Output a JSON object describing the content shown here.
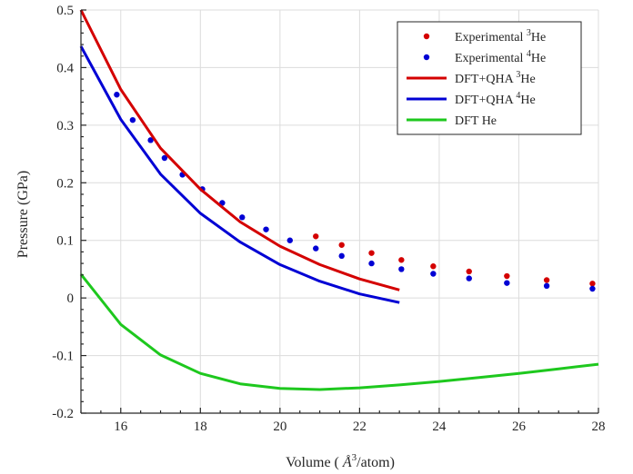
{
  "chart_data": {
    "type": "line",
    "xlabel_main": "Volume (",
    "xlabel_symbol": "Å",
    "xlabel_sup": "3",
    "xlabel_tail": "/atom)",
    "ylabel": "Pressure (GPa)",
    "xlim": [
      15,
      28
    ],
    "ylim": [
      -0.2,
      0.5
    ],
    "x_ticks": [
      16,
      18,
      20,
      22,
      24,
      26,
      28
    ],
    "x_tick_labels": [
      "16",
      "18",
      "20",
      "22",
      "24",
      "26",
      "28"
    ],
    "y_ticks": [
      -0.2,
      -0.1,
      0,
      0.1,
      0.2,
      0.3,
      0.4,
      0.5
    ],
    "y_tick_labels": [
      "-0.2",
      "-0.1",
      "0",
      "0.1",
      "0.2",
      "0.3",
      "0.4",
      "0.5"
    ],
    "grid": true,
    "legend_position": "top-right",
    "series": [
      {
        "name_prefix": "Experimental ",
        "name_sup": "3",
        "name_suffix": "He",
        "style": "markers",
        "color": "#d40000",
        "x": [
          20.9,
          21.55,
          22.3,
          23.05,
          23.85,
          24.75,
          25.7,
          26.7,
          27.85
        ],
        "y": [
          0.107,
          0.092,
          0.078,
          0.066,
          0.055,
          0.046,
          0.038,
          0.031,
          0.025
        ]
      },
      {
        "name_prefix": "Experimental ",
        "name_sup": "4",
        "name_suffix": "He",
        "style": "markers",
        "color": "#0000d4",
        "x": [
          15.9,
          16.3,
          16.75,
          17.1,
          17.55,
          18.05,
          18.55,
          19.05,
          19.65,
          20.25,
          20.9,
          21.55,
          22.3,
          23.05,
          23.85,
          24.75,
          25.7,
          26.7,
          27.85
        ],
        "y": [
          0.353,
          0.309,
          0.274,
          0.243,
          0.214,
          0.189,
          0.165,
          0.14,
          0.119,
          0.1,
          0.086,
          0.073,
          0.06,
          0.05,
          0.042,
          0.034,
          0.026,
          0.021,
          0.016
        ]
      },
      {
        "name_prefix": "DFT+QHA ",
        "name_sup": "3",
        "name_suffix": "He",
        "style": "line",
        "color": "#d40000",
        "x": [
          15,
          16,
          17,
          18,
          19,
          20,
          21,
          22,
          23
        ],
        "y": [
          0.5,
          0.362,
          0.26,
          0.189,
          0.132,
          0.09,
          0.058,
          0.033,
          0.014
        ]
      },
      {
        "name_prefix": "DFT+QHA ",
        "name_sup": "4",
        "name_suffix": "He",
        "style": "line",
        "color": "#0000d4",
        "x": [
          15,
          16,
          17,
          18,
          19,
          20,
          21,
          22,
          23
        ],
        "y": [
          0.437,
          0.31,
          0.215,
          0.147,
          0.097,
          0.058,
          0.029,
          0.007,
          -0.008
        ]
      },
      {
        "name_prefix": "DFT He",
        "name_sup": "",
        "name_suffix": "",
        "style": "line",
        "color": "#1ec81e",
        "x": [
          15,
          16,
          17,
          18,
          19,
          20,
          21,
          22,
          23,
          24,
          25,
          26,
          27,
          28
        ],
        "y": [
          0.041,
          -0.046,
          -0.099,
          -0.131,
          -0.149,
          -0.157,
          -0.159,
          -0.156,
          -0.151,
          -0.145,
          -0.138,
          -0.131,
          -0.123,
          -0.115
        ]
      }
    ]
  }
}
